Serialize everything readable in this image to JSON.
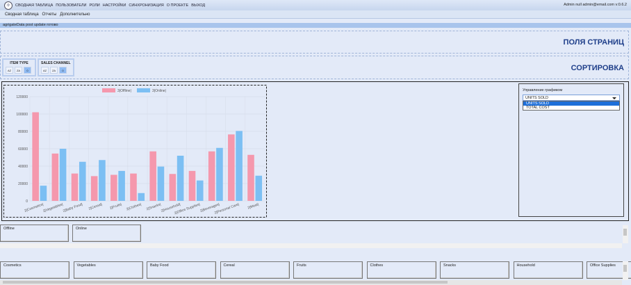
{
  "topbar": {
    "menu": [
      "СВОДНАЯ ТАБЛИЦА",
      "ПОЛЬЗОВАТЕЛИ",
      "РОЛИ",
      "НАСТРОЙКИ",
      "СИНХРОНИЗАЦИЯ",
      "О ПРОЕКТЕ",
      "ВЫХОД"
    ],
    "user": "Admin null admin@email.com v:0.6.2"
  },
  "subnav": [
    "Сводная таблица",
    "Отчеты",
    "Дополнительно"
  ],
  "status": "agrigateData post update готово",
  "zones": {
    "page_fields": "ПОЛЯ СТРАНИЦ",
    "sorting": "СОРТИРОВКА"
  },
  "filters": [
    {
      "title": "ITEM TYPE",
      "buttons": [
        "AZ",
        "ZA",
        "0"
      ]
    },
    {
      "title": "SALES CHANNEL",
      "buttons": [
        "AZ",
        "ZA",
        "0"
      ]
    }
  ],
  "control": {
    "label": "Управление графиком",
    "selected": "UNITS SOLD",
    "options": [
      "UNITS SOLD",
      "TOTAL COST"
    ]
  },
  "chart_data": {
    "type": "bar",
    "categories": [
      "2|Cosmetics|",
      "2|Vegetables|",
      "2|Baby Food|",
      "2|Cereal|",
      "2|Fruits|",
      "2|Clothes|",
      "2|Snacks|",
      "2|Household|",
      "2|Office Supplies|",
      "2|Beverages|",
      "2|Personal Care|",
      "2|Meat|"
    ],
    "series": [
      {
        "name": "3|Offline|",
        "color": "#f598ad",
        "values": [
          102000,
          54500,
          31500,
          28500,
          30000,
          31500,
          57000,
          31000,
          34500,
          57000,
          76500,
          53000
        ]
      },
      {
        "name": "3|Online|",
        "color": "#7cbff3",
        "values": [
          17500,
          60000,
          45000,
          47000,
          34500,
          9000,
          39500,
          52000,
          23500,
          61000,
          80500,
          29000
        ]
      }
    ],
    "ylim": [
      0,
      120000
    ],
    "yticks": [
      "0",
      "20000",
      "40000",
      "60000",
      "80000",
      "100000",
      "120000"
    ],
    "grid": true,
    "legend": "top"
  },
  "rows": {
    "channels": [
      "Offline",
      "Online"
    ],
    "items": [
      "Cosmetics",
      "Vegetables",
      "Baby Food",
      "Cereal",
      "Fruits",
      "Clothes",
      "Snacks",
      "Household",
      "Office Supplies"
    ]
  }
}
